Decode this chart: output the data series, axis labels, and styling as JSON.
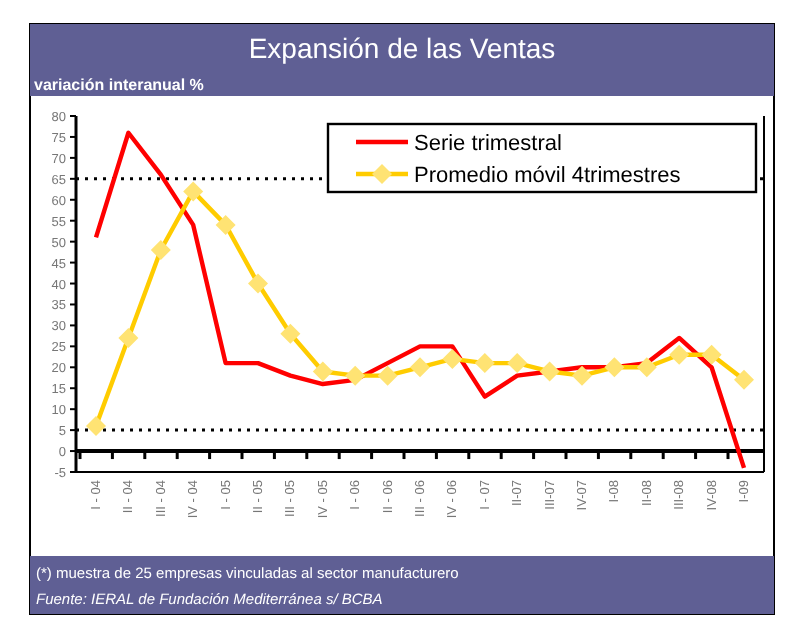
{
  "chart_data": {
    "type": "line",
    "title": "Expansión de las Ventas",
    "subtitle": "variación interanual %",
    "categories": [
      "I - 04",
      "II - 04",
      "III - 04",
      "IV - 04",
      "I - 05",
      "II - 05",
      "III - 05",
      "IV - 05",
      "I - 06",
      "II - 06",
      "III - 06",
      "IV - 06",
      "I - 07",
      "II-07",
      "III-07",
      "IV-07",
      "I-08",
      "II-08",
      "III-08",
      "IV-08",
      "I-09"
    ],
    "series": [
      {
        "name": "Serie trimestral",
        "color": "#ff0000",
        "marker": "none",
        "values": [
          51,
          76,
          66,
          54,
          21,
          21,
          18,
          16,
          17,
          21,
          25,
          25,
          13,
          18,
          19,
          20,
          20,
          21,
          27,
          20,
          -4
        ]
      },
      {
        "name": "Promedio móvil 4trimestres",
        "color": "#ffcc00",
        "marker": "diamond",
        "values": [
          6,
          27,
          48,
          62,
          54,
          40,
          28,
          19,
          18,
          18,
          20,
          22,
          21,
          21,
          19,
          18,
          20,
          20,
          23,
          23,
          17
        ]
      }
    ],
    "ylim": [
      -5,
      80
    ],
    "yticks": [
      -5,
      0,
      5,
      10,
      15,
      20,
      25,
      30,
      35,
      40,
      45,
      50,
      55,
      60,
      65,
      70,
      75,
      80
    ],
    "ref_lines": [
      {
        "axis": "y",
        "value": 65,
        "line_style": "dotted",
        "color": "#000000"
      },
      {
        "axis": "y",
        "value": 5,
        "line_style": "dotted",
        "color": "#000000"
      }
    ],
    "legend": "top right",
    "grid": false,
    "line_style": "solid",
    "annotations": [
      "(*) muestra de 25 empresas vinculadas al sector manufacturero",
      "Fuente: IERAL de Fundación Mediterránea s/ BCBA"
    ]
  }
}
